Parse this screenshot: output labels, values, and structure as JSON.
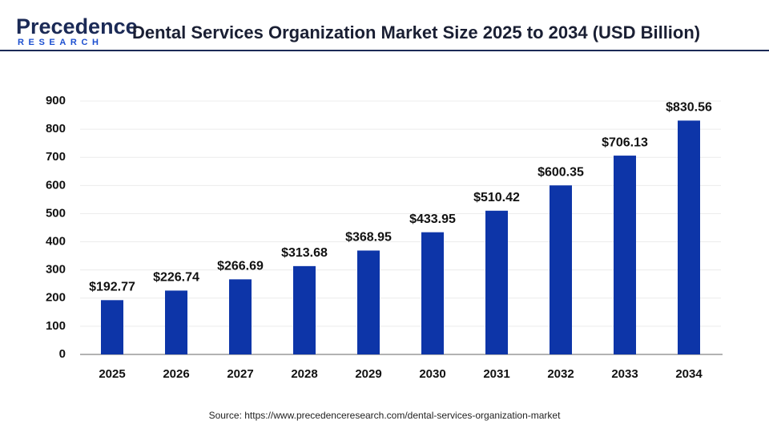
{
  "logo": {
    "name": "Precedence",
    "tagline": "RESEARCH"
  },
  "chart_data": {
    "type": "bar",
    "title": "Dental Services Organization Market Size 2025 to 2034 (USD Billion)",
    "categories": [
      "2025",
      "2026",
      "2027",
      "2028",
      "2029",
      "2030",
      "2031",
      "2032",
      "2033",
      "2034"
    ],
    "values": [
      192.77,
      226.74,
      266.69,
      313.68,
      368.95,
      433.95,
      510.42,
      600.35,
      706.13,
      830.56
    ],
    "value_labels": [
      "$192.77",
      "$226.74",
      "$266.69",
      "$313.68",
      "$368.95",
      "$433.95",
      "$510.42",
      "$600.35",
      "$706.13",
      "$830.56"
    ],
    "color": "#0d35a8",
    "ylim": [
      0,
      900
    ],
    "yticks": [
      0,
      100,
      200,
      300,
      400,
      500,
      600,
      700,
      800,
      900
    ],
    "grid": true,
    "source": "Source: https://www.precedenceresearch.com/dental-services-organization-market"
  }
}
